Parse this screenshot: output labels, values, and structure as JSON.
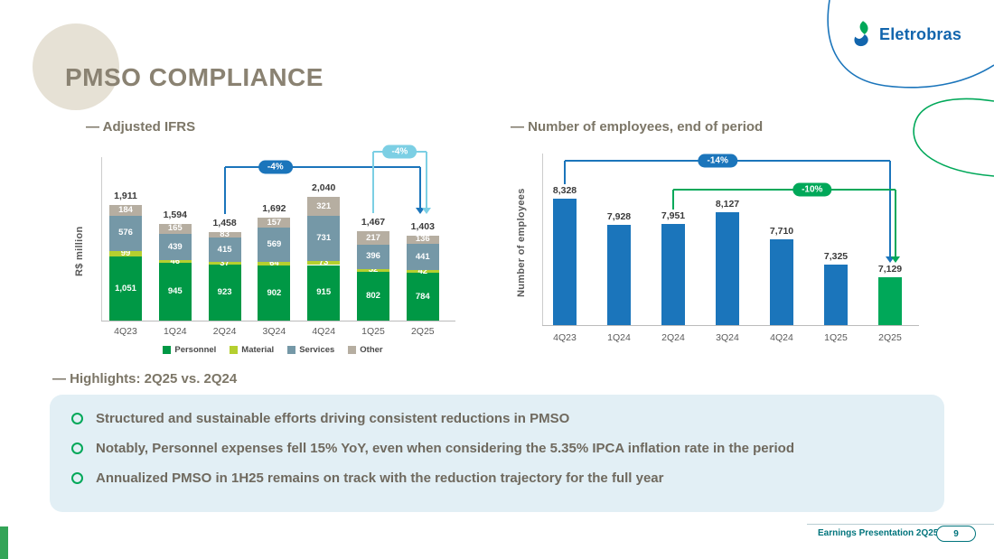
{
  "slide": {
    "title": "PMSO COMPLIANCE",
    "logo_text": "Eletrobras",
    "footer": {
      "label": "Earnings Presentation 2Q25",
      "page": "9"
    }
  },
  "theme": {
    "accent_teal": "#00747c",
    "heading_color": "#7c7667",
    "highlight_box_bg": "#e2eff5",
    "highlight_text_color": "#6f695e",
    "personnel_green": "#009845",
    "material_lime": "#b5cf2f",
    "services_slate": "#7598a7",
    "other_tan": "#b6aea1",
    "employees_blue": "#1b75bb",
    "employees_green": "#00a859",
    "badge_light_blue": "#7ccfe4"
  },
  "chart_data": [
    {
      "type": "bar",
      "stacked": true,
      "title": "— Adjusted IFRS",
      "ylabel": "R$ million",
      "categories": [
        "4Q23",
        "1Q24",
        "2Q24",
        "3Q24",
        "4Q24",
        "1Q25",
        "2Q25"
      ],
      "series": [
        {
          "name": "Personnel",
          "color": "#009845",
          "values": [
            1051,
            945,
            923,
            902,
            915,
            802,
            784
          ]
        },
        {
          "name": "Material",
          "color": "#b5cf2f",
          "values": [
            99,
            46,
            37,
            64,
            73,
            52,
            42
          ]
        },
        {
          "name": "Services",
          "color": "#7598a7",
          "values": [
            576,
            439,
            415,
            569,
            731,
            396,
            441
          ]
        },
        {
          "name": "Other",
          "color": "#b6aea1",
          "values": [
            184,
            165,
            83,
            157,
            321,
            217,
            136
          ]
        }
      ],
      "totals": [
        1911,
        1594,
        1458,
        1692,
        2040,
        1467,
        1403
      ],
      "annotations": [
        {
          "label": "-4%",
          "color": "#1b75bb",
          "from": "2Q24",
          "to": "2Q25"
        },
        {
          "label": "-4%",
          "color": "#7ccfe4",
          "from": "1Q25",
          "to": "2Q25"
        }
      ],
      "legend": [
        "Personnel",
        "Material",
        "Services",
        "Other"
      ],
      "legend_position": "bottom",
      "ylim": [
        0,
        2100
      ],
      "grid": false
    },
    {
      "type": "bar",
      "stacked": false,
      "title": "— Number of employees, end of period",
      "ylabel": "Number of employees",
      "categories": [
        "4Q23",
        "1Q24",
        "2Q24",
        "3Q24",
        "4Q24",
        "1Q25",
        "2Q25"
      ],
      "values": [
        8328,
        7928,
        7951,
        8127,
        7710,
        7325,
        7129
      ],
      "bar_colors": [
        "#1b75bb",
        "#1b75bb",
        "#1b75bb",
        "#1b75bb",
        "#1b75bb",
        "#1b75bb",
        "#00a859"
      ],
      "annotations": [
        {
          "label": "-14%",
          "color": "#1b75bb",
          "from": "4Q23",
          "to": "2Q25"
        },
        {
          "label": "-10%",
          "color": "#00a859",
          "from": "2Q24",
          "to": "2Q25"
        }
      ],
      "ylim": [
        6400,
        8400
      ],
      "grid": false
    }
  ],
  "highlights": {
    "heading": "— Highlights: 2Q25 vs. 2Q24",
    "items": [
      "Structured and sustainable efforts driving consistent reductions in PMSO",
      "Notably, Personnel expenses fell 15% YoY, even when considering the 5.35% IPCA inflation rate in the period",
      "Annualized PMSO in 1H25 remains on track with the reduction trajectory for the full year"
    ]
  }
}
